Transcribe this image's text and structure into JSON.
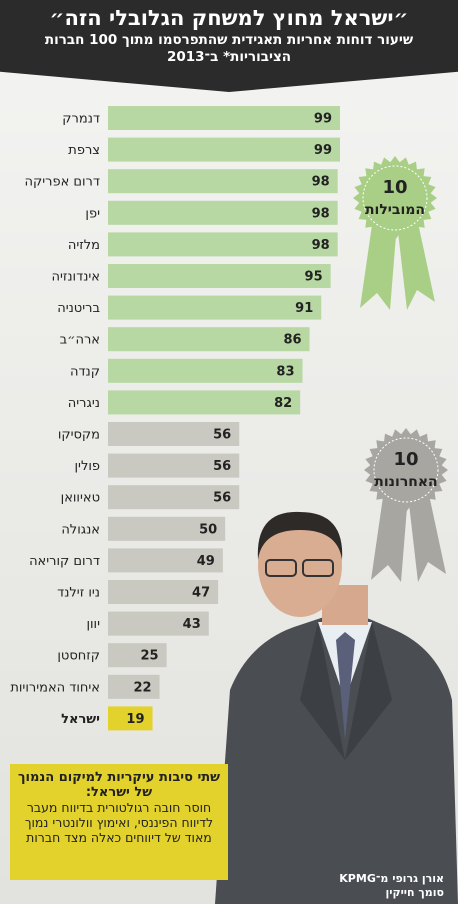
{
  "chart_data": {
    "type": "bar",
    "title": "״ישראל מחוץ למשחק הגלובלי הזה״",
    "subtitle": "שיעור דוחות אחריות תאגידית שהתפרסמו מתוך 100 חברות הציבוריות* ב־2013",
    "categories": [
      "דנמרק",
      "צרפת",
      "דרום אפריקה",
      "יפן",
      "מלזיה",
      "אינדונזיה",
      "בריטניה",
      "ארה״ב",
      "קנדה",
      "ניגריה",
      "מקסיקו",
      "פולין",
      "טאיוואן",
      "אנגולה",
      "דרום קוריאה",
      "ניו זילנד",
      "יוון",
      "קזחסטן",
      "איחוד האמירויות",
      "ישראל"
    ],
    "values": [
      99,
      99,
      98,
      98,
      98,
      95,
      91,
      86,
      83,
      82,
      56,
      56,
      56,
      50,
      49,
      47,
      43,
      25,
      22,
      19
    ],
    "colors": [
      "#b7d8a3",
      "#b7d8a3",
      "#b7d8a3",
      "#b7d8a3",
      "#b7d8a3",
      "#b7d8a3",
      "#b7d8a3",
      "#b7d8a3",
      "#b7d8a3",
      "#b7d8a3",
      "#c9c9c1",
      "#c9c9c1",
      "#c9c9c1",
      "#c9c9c1",
      "#c9c9c1",
      "#c9c9c1",
      "#c9c9c1",
      "#c9c9c1",
      "#c9c9c1",
      "#e4d22c"
    ],
    "badges": [
      {
        "number": "10",
        "label": "המובילות",
        "color": "#a9cf86"
      },
      {
        "number": "10",
        "label": "האחרונות",
        "color": "#a7a6a0"
      }
    ],
    "callout": {
      "title": "שתי סיבות עיקריות למיקום הנמוך של ישראל:",
      "body": "חוסר חובה רגולטורית בדיווח מעבר לדיווח הפיננסי, ואימוץ וולונטרי נמוך מאוד של דיווחים כאלה מצד חברות"
    },
    "credit": [
      "אורן גרופי מ־KPMG",
      "סומך חייקין"
    ]
  }
}
